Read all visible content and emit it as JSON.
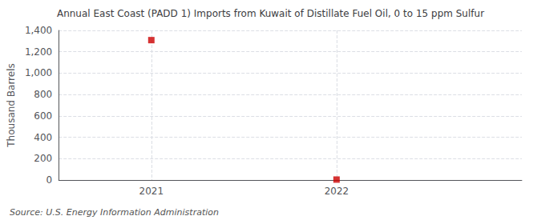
{
  "chart_data": {
    "type": "scatter",
    "title": "Annual East Coast (PADD 1) Imports from Kuwait of Distillate Fuel Oil, 0 to 15 ppm Sulfur",
    "ylabel": "Thousand Barrels",
    "annotations": [
      "Source: U.S. Energy Information Administration"
    ],
    "x": [
      2021,
      2022
    ],
    "values": [
      1309,
      4
    ],
    "color": "#cc0000",
    "marker": "square",
    "xlim": [
      2020.5,
      2023.0
    ],
    "xticks": [
      2021,
      2022
    ],
    "ylim": [
      0,
      1400
    ],
    "yticks": [
      0,
      200,
      400,
      600,
      800,
      {
        "value": 1000,
        "label": "1,000"
      },
      {
        "value": 1200,
        "label": "1,200"
      },
      {
        "value": 1400,
        "label": "1,400"
      }
    ],
    "grid": true
  }
}
